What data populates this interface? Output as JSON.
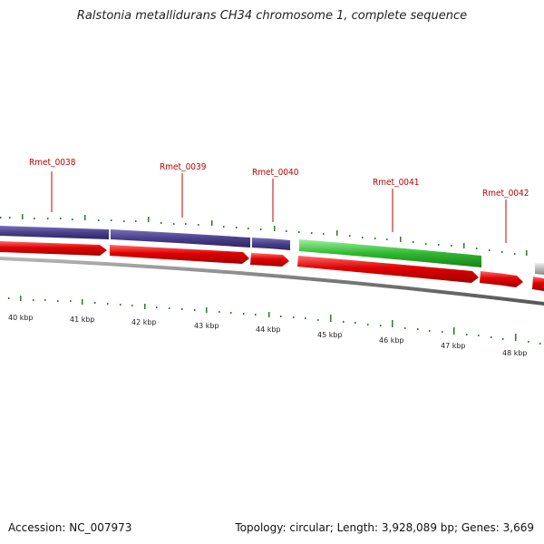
{
  "title": "Ralstonia metallidurans CH34 chromosome 1, complete sequence",
  "footer": {
    "accession": "Accession: NC_007973",
    "stats": "Topology: circular; Length: 3,928,089 bp; Genes: 3,669"
  },
  "gene_labels": [
    "Rmet_0038",
    "Rmet_0039",
    "Rmet_0040",
    "Rmet_0041",
    "Rmet_0042"
  ],
  "kbp_ticks": [
    "40 kbp",
    "41 kbp",
    "42 kbp",
    "43 kbp",
    "44 kbp",
    "45 kbp",
    "46 kbp",
    "47 kbp",
    "48 kbp"
  ],
  "colors": {
    "cog_purple": "#4a3f8a",
    "cog_green": "#2fb82f",
    "cds_red": "#e00000",
    "unknown_gray": "#bbbbbb",
    "backbone": "#777777",
    "tick_green": "#2a7a2a",
    "label_red": "#c00000"
  }
}
